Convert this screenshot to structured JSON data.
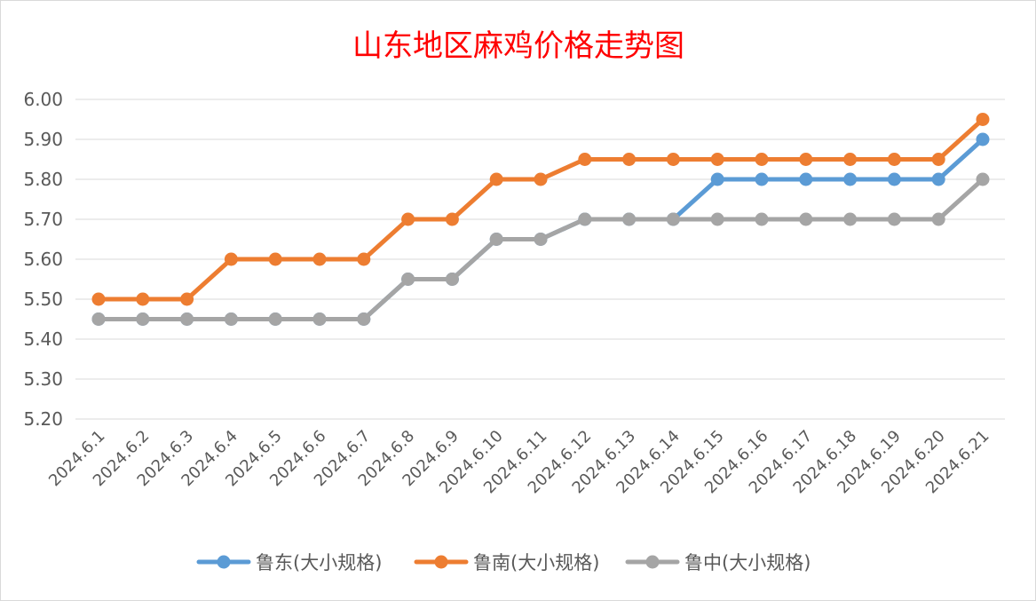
{
  "chart_data": {
    "type": "line",
    "title": "山东地区麻鸡价格走势图",
    "xlabel": "",
    "ylabel": "",
    "categories": [
      "2024.6.1",
      "2024.6.2",
      "2024.6.3",
      "2024.6.4",
      "2024.6.5",
      "2024.6.6",
      "2024.6.7",
      "2024.6.8",
      "2024.6.9",
      "2024.6.10",
      "2024.6.11",
      "2024.6.12",
      "2024.6.13",
      "2024.6.14",
      "2024.6.15",
      "2024.6.16",
      "2024.6.17",
      "2024.6.18",
      "2024.6.19",
      "2024.6.20",
      "2024.6.21"
    ],
    "ylim": [
      5.2,
      6.0
    ],
    "yticks": [
      "6.00",
      "5.90",
      "5.80",
      "5.70",
      "5.60",
      "5.50",
      "5.40",
      "5.30",
      "5.20"
    ],
    "grid": true,
    "legend_position": "bottom",
    "series": [
      {
        "name": "鲁东(大小规格)",
        "color": "#5b9bd5",
        "values": [
          5.45,
          5.45,
          5.45,
          5.45,
          5.45,
          5.45,
          5.45,
          5.55,
          5.55,
          5.65,
          5.65,
          5.7,
          5.7,
          5.7,
          5.8,
          5.8,
          5.8,
          5.8,
          5.8,
          5.8,
          5.9
        ]
      },
      {
        "name": "鲁南(大小规格)",
        "color": "#ed7d31",
        "values": [
          5.5,
          5.5,
          5.5,
          5.6,
          5.6,
          5.6,
          5.6,
          5.7,
          5.7,
          5.8,
          5.8,
          5.85,
          5.85,
          5.85,
          5.85,
          5.85,
          5.85,
          5.85,
          5.85,
          5.85,
          5.95
        ]
      },
      {
        "name": "鲁中(大小规格)",
        "color": "#a5a5a5",
        "values": [
          5.45,
          5.45,
          5.45,
          5.45,
          5.45,
          5.45,
          5.45,
          5.55,
          5.55,
          5.65,
          5.65,
          5.7,
          5.7,
          5.7,
          5.7,
          5.7,
          5.7,
          5.7,
          5.7,
          5.7,
          5.8
        ]
      }
    ]
  }
}
